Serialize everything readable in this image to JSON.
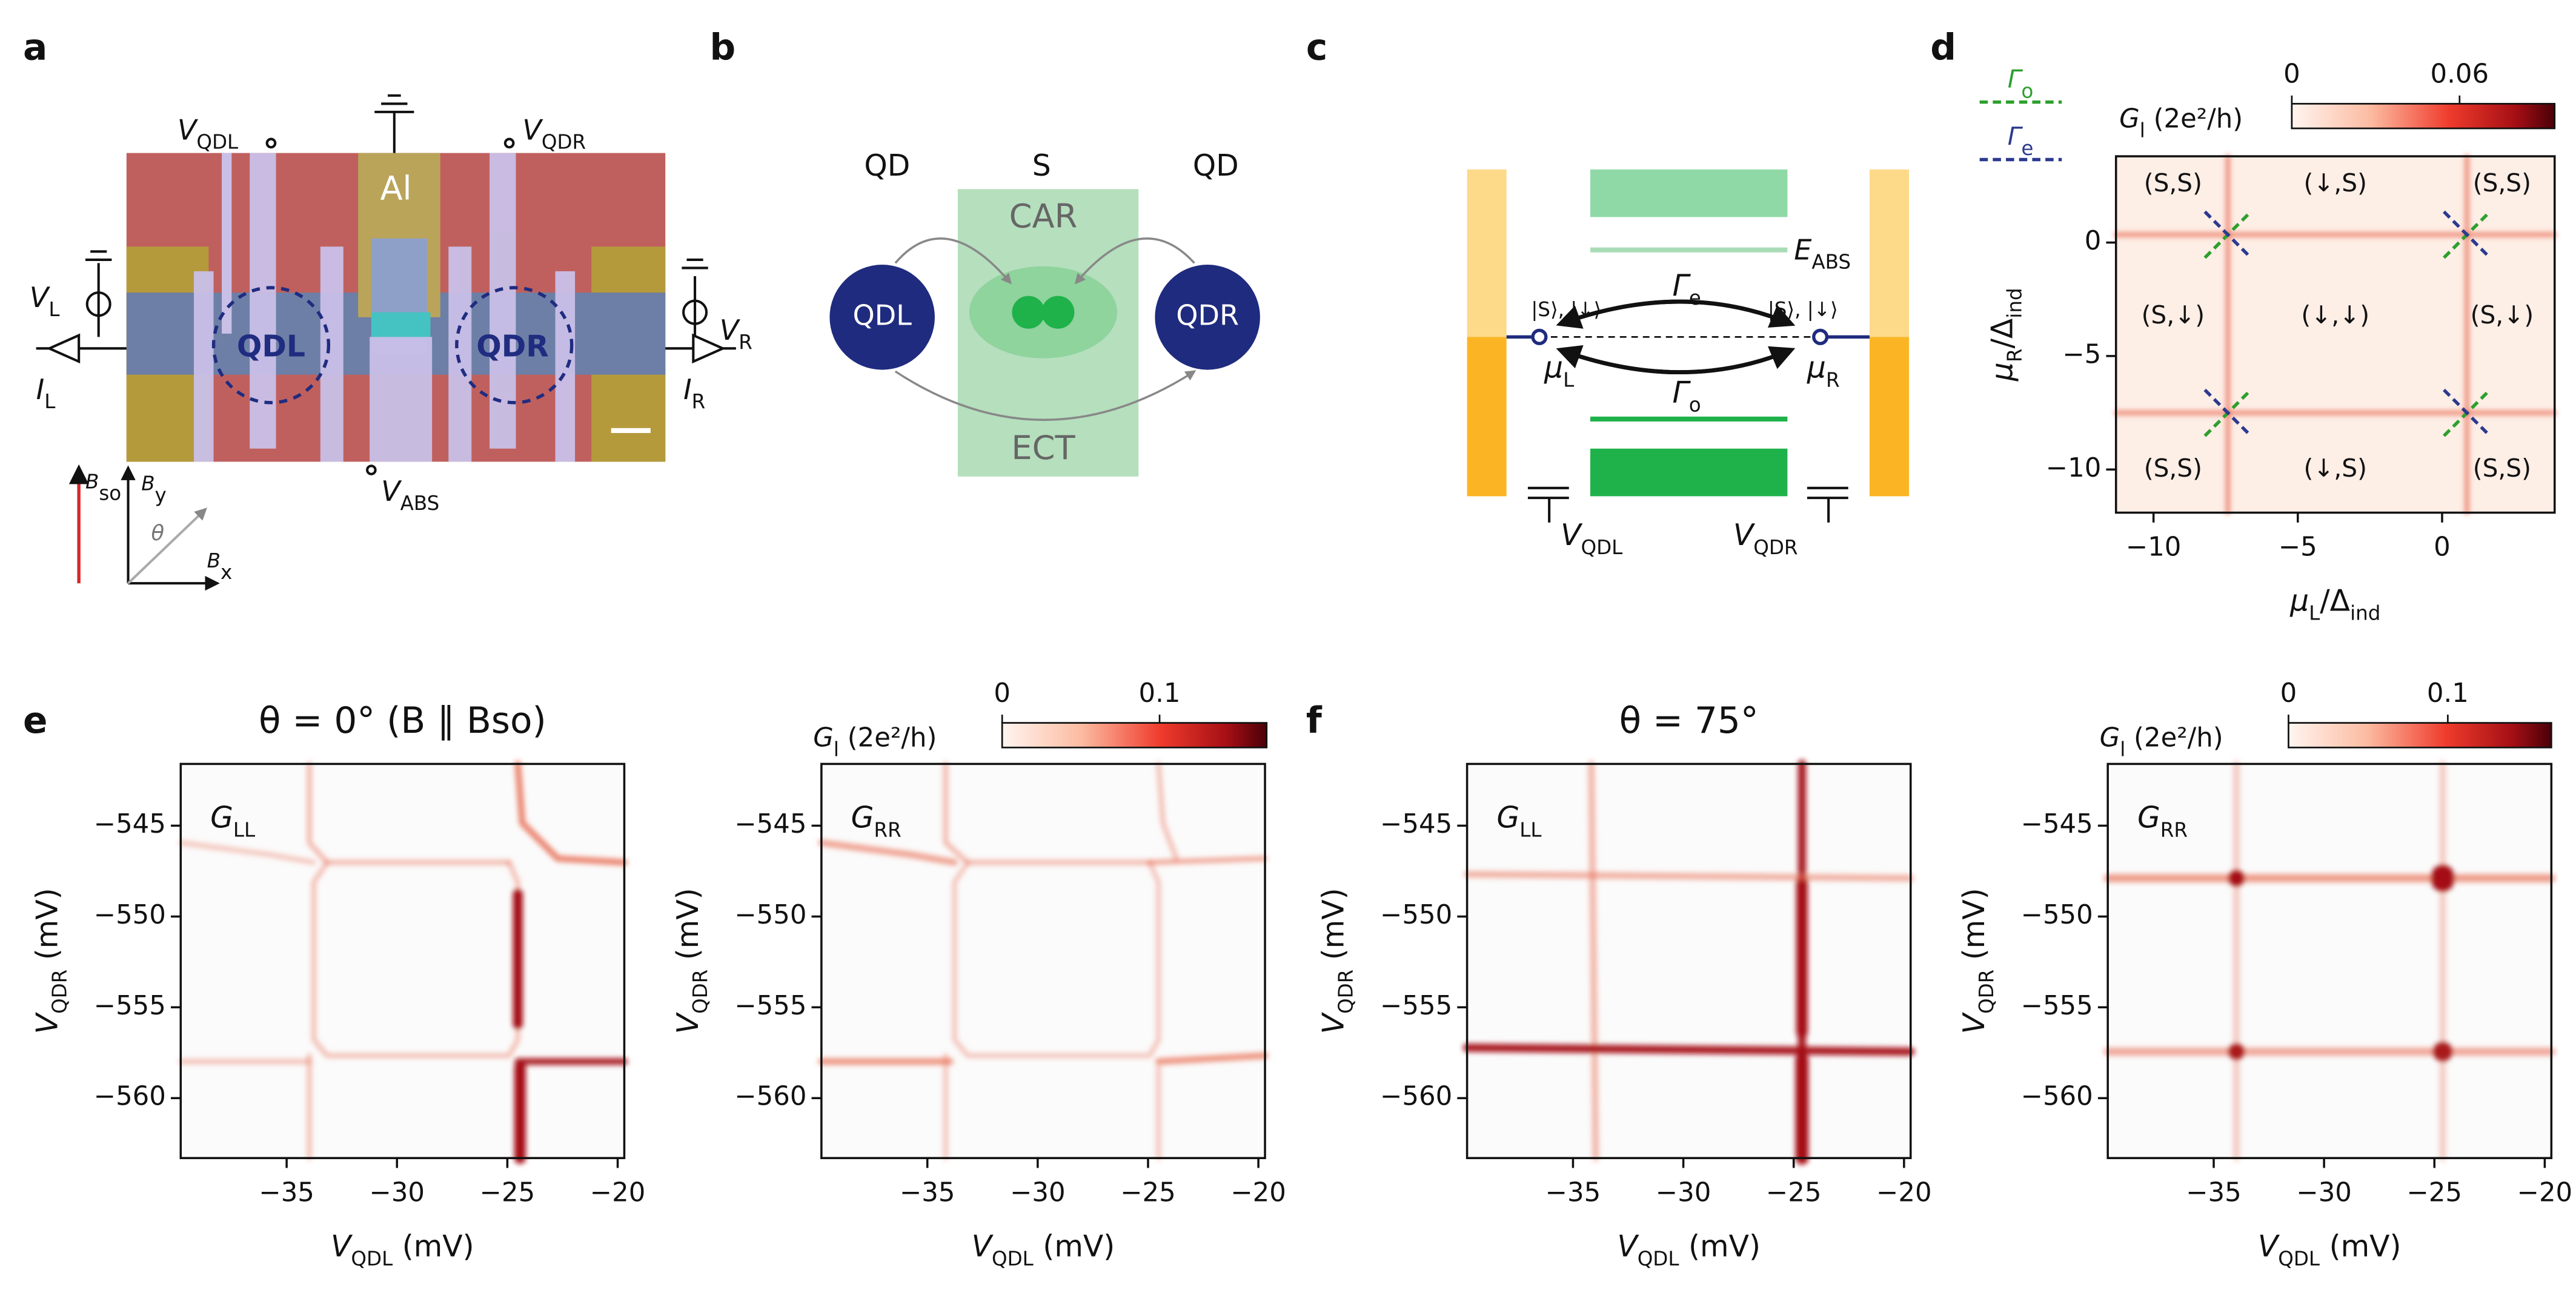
{
  "panel_labels": [
    "a",
    "b",
    "c",
    "d",
    "e",
    "f"
  ],
  "a": {
    "v_qdl": [
      "V",
      "QDL"
    ],
    "v_qdr": [
      "V",
      "QDR"
    ],
    "al": "Al",
    "v_l": [
      "V",
      "L"
    ],
    "v_r": [
      "V",
      "R"
    ],
    "i_l": [
      "I",
      "L"
    ],
    "i_r": [
      "I",
      "R"
    ],
    "qdl": "QDL",
    "qdr": "QDR",
    "v_abs": [
      "V",
      "ABS"
    ],
    "b_so": [
      "B",
      "so"
    ],
    "b_y": [
      "B",
      "y"
    ],
    "b_x": [
      "B",
      "x"
    ],
    "theta": "θ"
  },
  "b": {
    "qd_left": "QD",
    "s": "S",
    "qd_right": "QD",
    "car": "CAR",
    "qdl": "QDL",
    "qdr": "QDR",
    "ect": "ECT"
  },
  "c": {
    "e_abs": [
      "E",
      "ABS"
    ],
    "gamma_e": [
      "Γ",
      "e"
    ],
    "gamma_o": [
      "Γ",
      "o"
    ],
    "state_left": "|S⟩, |↓⟩",
    "state_right": "|S⟩, |↓⟩",
    "mu_l": [
      "μ",
      "L"
    ],
    "mu_r": [
      "μ",
      "R"
    ],
    "v_qdl": [
      "V",
      "QDL"
    ],
    "v_qdr": [
      "V",
      "QDR"
    ]
  },
  "chart_data": [
    {
      "type": "heatmap",
      "xlabel": [
        "μ",
        "L",
        "/Δ",
        "ind"
      ],
      "ylabel": [
        "μ",
        "R",
        "/Δ",
        "ind"
      ],
      "xlim": [
        -11.3,
        3.9
      ],
      "ylim": [
        -11.9,
        3.8
      ],
      "xticks": [
        {
          "value": -10,
          "label": "−10"
        },
        {
          "value": -5,
          "label": "−5"
        },
        0
      ],
      "yticks": [
        0,
        {
          "value": -5,
          "label": "−5"
        },
        {
          "value": -10,
          "label": "−10"
        }
      ],
      "colorbar": {
        "label": [
          "G",
          "l",
          " (2e²/h)"
        ],
        "lim": [
          0,
          0.094
        ],
        "ticks": [
          0,
          0.06
        ]
      },
      "legend": [
        {
          "name": [
            "Γ",
            "o"
          ],
          "color": "#2ca02c"
        },
        {
          "name": [
            "Γ",
            "e"
          ],
          "color": "#2b3a8f"
        }
      ],
      "regions": [
        "(S,S)",
        "(↓,S)",
        "(S,S)",
        "(S,↓)",
        "(↓,↓)",
        "(S,↓)",
        "(S,S)",
        "(↓,S)",
        "(S,S)"
      ]
    },
    {
      "type": "heatmap",
      "title": "θ = 0° (B ∥ Bso)",
      "inset": [
        "G",
        "LL"
      ],
      "xlabel": [
        "V",
        "QDL",
        " (mV)"
      ],
      "ylabel": [
        "V",
        "QDR",
        " (mV)"
      ],
      "xlim": [
        -39.8,
        -19.7
      ],
      "ylim": [
        -563.3,
        -541.6
      ],
      "xticks": [
        {
          "value": -35,
          "label": "−35"
        },
        {
          "value": -30,
          "label": "−30"
        },
        {
          "value": -25,
          "label": "−25"
        },
        {
          "value": -20,
          "label": "−20"
        }
      ],
      "yticks": [
        {
          "value": -545,
          "label": "−545"
        },
        {
          "value": -550,
          "label": "−550"
        },
        {
          "value": -555,
          "label": "−555"
        },
        {
          "value": -560,
          "label": "−560"
        }
      ]
    },
    {
      "type": "heatmap",
      "inset": [
        "G",
        "RR"
      ],
      "xlabel": [
        "V",
        "QDL",
        " (mV)"
      ],
      "ylabel": [
        "V",
        "QDR",
        " (mV)"
      ],
      "xlim": [
        -39.8,
        -19.7
      ],
      "ylim": [
        -563.3,
        -541.6
      ],
      "xticks": [
        {
          "value": -35,
          "label": "−35"
        },
        {
          "value": -30,
          "label": "−30"
        },
        {
          "value": -25,
          "label": "−25"
        },
        {
          "value": -20,
          "label": "−20"
        }
      ],
      "yticks": [
        {
          "value": -545,
          "label": "−545"
        },
        {
          "value": -550,
          "label": "−550"
        },
        {
          "value": -555,
          "label": "−555"
        },
        {
          "value": -560,
          "label": "−560"
        }
      ],
      "colorbar": {
        "label": [
          "G",
          "l",
          " (2e²/h)"
        ],
        "lim": [
          0,
          0.168
        ],
        "ticks": [
          0,
          0.1
        ]
      }
    },
    {
      "type": "heatmap",
      "title": "θ = 75°",
      "inset": [
        "G",
        "LL"
      ],
      "xlabel": [
        "V",
        "QDL",
        " (mV)"
      ],
      "ylabel": [
        "V",
        "QDR",
        " (mV)"
      ],
      "xlim": [
        -39.8,
        -19.7
      ],
      "ylim": [
        -563.3,
        -541.6
      ],
      "xticks": [
        {
          "value": -35,
          "label": "−35"
        },
        {
          "value": -30,
          "label": "−30"
        },
        {
          "value": -25,
          "label": "−25"
        },
        {
          "value": -20,
          "label": "−20"
        }
      ],
      "yticks": [
        {
          "value": -545,
          "label": "−545"
        },
        {
          "value": -550,
          "label": "−550"
        },
        {
          "value": -555,
          "label": "−555"
        },
        {
          "value": -560,
          "label": "−560"
        }
      ]
    },
    {
      "type": "heatmap",
      "inset": [
        "G",
        "RR"
      ],
      "xlabel": [
        "V",
        "QDL",
        " (mV)"
      ],
      "ylabel": [
        "V",
        "QDR",
        " (mV)"
      ],
      "xlim": [
        -39.8,
        -19.7
      ],
      "ylim": [
        -563.3,
        -541.6
      ],
      "xticks": [
        {
          "value": -35,
          "label": "−35"
        },
        {
          "value": -30,
          "label": "−30"
        },
        {
          "value": -25,
          "label": "−25"
        },
        {
          "value": -20,
          "label": "−20"
        }
      ],
      "yticks": [
        {
          "value": -545,
          "label": "−545"
        },
        {
          "value": -550,
          "label": "−550"
        },
        {
          "value": -555,
          "label": "−555"
        },
        {
          "value": -560,
          "label": "−560"
        }
      ],
      "colorbar": {
        "label": [
          "G",
          "l",
          " (2e²/h)"
        ],
        "lim": [
          0,
          0.165
        ],
        "ticks": [
          0,
          0.1
        ]
      }
    }
  ]
}
